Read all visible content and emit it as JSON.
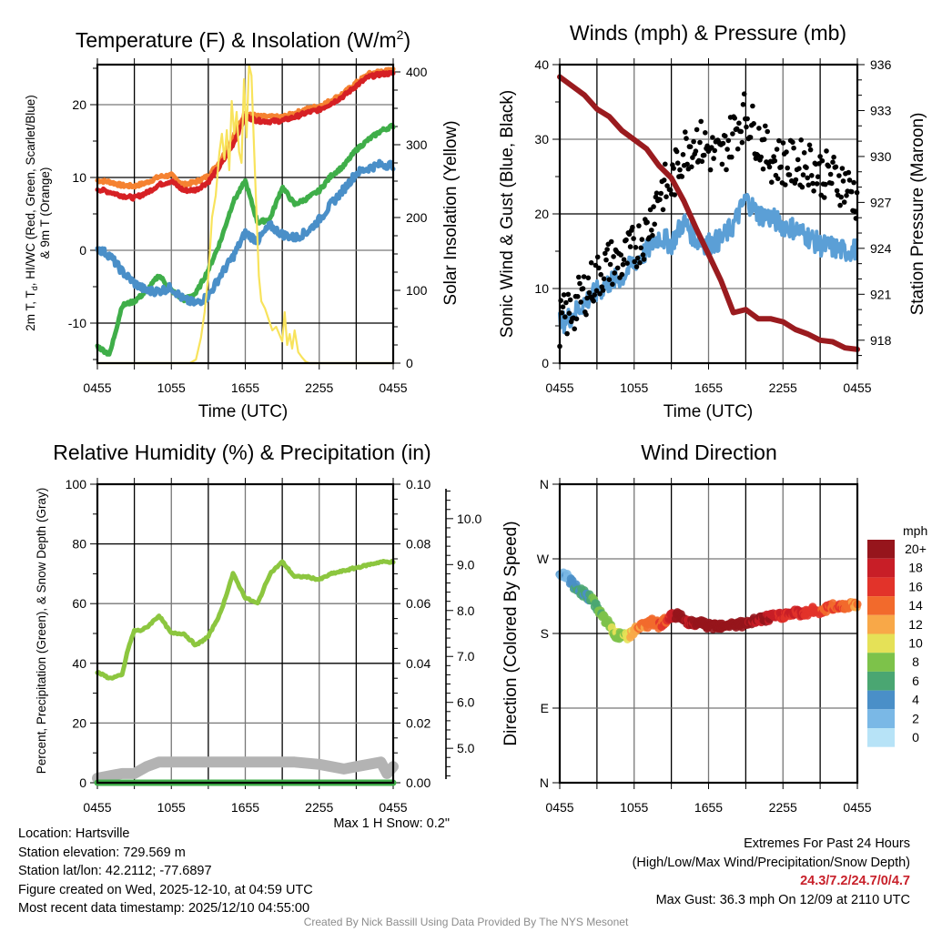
{
  "panels": {
    "temperature": {
      "title": "Temperature (F) & Insolation (W/m",
      "title_sup": "2",
      "title_close": ")",
      "ylabel_left_line1": "2m T, T",
      "ylabel_left_sub": "d",
      "ylabel_left_line1b": ", HI/WC (Red, Green, Scarlet/Blue)",
      "ylabel_left_line2": "& 9m T (Orange)",
      "ylabel_right": "Solar Insolation (Yellow)",
      "xlabel": "Time (UTC)"
    },
    "winds": {
      "title": "Winds (mph) & Pressure (mb)",
      "ylabel_left": "Sonic Wind & Gust (Blue, Black)",
      "ylabel_right": "Station Pressure (Maroon)",
      "xlabel": "Time (UTC)"
    },
    "humidity": {
      "title": "Relative Humidity (%) & Precipitation (in)",
      "ylabel_left": "Percent, Precipitation (Green), & Snow Depth (Gray)",
      "snow_max_label": "Max 1 H Snow: 0.2\""
    },
    "direction": {
      "title": "Wind Direction",
      "ylabel_left": "Direction (Colored By Speed)",
      "colorbar_title": "mph"
    }
  },
  "chart_data": [
    {
      "id": "temperature",
      "type": "line",
      "title": "Temperature (F) & Insolation (W/m^2)",
      "xlabel": "Time (UTC)",
      "ylabel": "2m T, Td, HI/WC (Red, Green, Scarlet/Blue) & 9m T (Orange)",
      "y2label": "Solar Insolation (Yellow)",
      "x_ticks": [
        "0455",
        "1055",
        "1655",
        "2255",
        "0455"
      ],
      "x_range_hours": [
        0,
        24
      ],
      "ylim": [
        -15.5,
        25.5
      ],
      "y_ticks": [
        -10,
        0,
        10,
        20
      ],
      "y2lim": [
        0,
        410
      ],
      "y2_ticks": [
        0,
        100,
        200,
        300,
        400
      ],
      "grid": true,
      "series": [
        {
          "name": "9m T",
          "axis": "left",
          "color": "#f58231",
          "x": [
            0,
            1,
            2,
            3,
            4,
            5,
            6,
            7,
            8,
            9,
            10,
            11,
            12,
            13,
            14,
            15,
            16,
            17,
            18,
            19,
            20,
            21,
            22,
            23,
            24
          ],
          "values": [
            9.6,
            9.4,
            8.9,
            8.8,
            9.3,
            10.1,
            10.3,
            9.0,
            9.4,
            10.2,
            12.3,
            15.5,
            18.9,
            18.4,
            18.3,
            18.3,
            18.8,
            19.4,
            19.8,
            20.6,
            21.6,
            23.0,
            24.2,
            24.6,
            24.7
          ]
        },
        {
          "name": "2m T",
          "axis": "left",
          "color": "#d62024",
          "x": [
            0,
            1,
            2,
            3,
            4,
            5,
            6,
            7,
            8,
            9,
            10,
            11,
            12,
            13,
            14,
            15,
            16,
            17,
            18,
            19,
            20,
            21,
            22,
            23,
            24
          ],
          "values": [
            8.4,
            8.0,
            7.5,
            7.2,
            7.9,
            9.0,
            9.5,
            8.2,
            8.3,
            9.4,
            11.7,
            14.6,
            18.4,
            17.8,
            17.7,
            17.8,
            18.3,
            18.9,
            19.3,
            20.2,
            21.2,
            22.6,
            23.8,
            24.2,
            24.3
          ]
        },
        {
          "name": "2m Td",
          "axis": "left",
          "color": "#3fae49",
          "x": [
            0,
            1,
            2,
            3,
            4,
            5,
            6,
            7,
            8,
            9,
            10,
            11,
            12,
            13,
            14,
            15,
            16,
            17,
            18,
            19,
            20,
            21,
            22,
            23,
            24
          ],
          "values": [
            -13.2,
            -14.3,
            -7.6,
            -7.0,
            -5.6,
            -3.4,
            -5.5,
            -6.8,
            -5.9,
            -2.7,
            1.3,
            6.6,
            9.5,
            3.8,
            4.3,
            8.7,
            6.3,
            7.1,
            8.2,
            10.3,
            11.6,
            13.8,
            15.2,
            16.4,
            17.1
          ]
        },
        {
          "name": "HI/WC",
          "axis": "left",
          "color": "#4a8fc8",
          "x": [
            0,
            1,
            2,
            3,
            4,
            5,
            6,
            7,
            8,
            9,
            10,
            11,
            12,
            13,
            14,
            15,
            16,
            17,
            18,
            19,
            20,
            21,
            22,
            23,
            24
          ],
          "values": [
            0.3,
            -0.7,
            -2.9,
            -4.5,
            -5.6,
            -5.6,
            -5.1,
            -6.8,
            -7.3,
            -6.3,
            -3.4,
            -0.9,
            2.4,
            1.3,
            3.4,
            2.2,
            1.7,
            2.5,
            4.2,
            6.4,
            8.4,
            10.6,
            11.3,
            11.8,
            11.7
          ]
        },
        {
          "name": "Solar Insolation",
          "axis": "right",
          "color": "#f8e35c",
          "x": [
            0,
            7.5,
            8.0,
            8.4,
            8.7,
            9.0,
            9.3,
            9.6,
            9.9,
            10.1,
            10.3,
            10.5,
            10.7,
            10.9,
            11.1,
            11.3,
            11.5,
            11.7,
            11.9,
            12.1,
            12.3,
            12.5,
            12.7,
            12.9,
            13.1,
            13.3,
            13.6,
            13.9,
            14.2,
            14.5,
            14.8,
            15.0,
            15.2,
            15.4,
            15.6,
            15.8,
            16.0,
            16.3,
            16.6,
            16.9,
            17.2,
            24
          ],
          "values": [
            0,
            0,
            5,
            35,
            70,
            120,
            200,
            230,
            290,
            315,
            280,
            320,
            265,
            360,
            315,
            345,
            290,
            275,
            390,
            310,
            410,
            395,
            300,
            210,
            120,
            85,
            75,
            60,
            45,
            50,
            38,
            30,
            70,
            25,
            40,
            20,
            45,
            15,
            8,
            2,
            0,
            0
          ]
        }
      ]
    },
    {
      "id": "winds",
      "type": "line",
      "title": "Winds (mph) & Pressure (mb)",
      "xlabel": "Time (UTC)",
      "ylabel": "Sonic Wind & Gust (Blue, Black)",
      "y2label": "Station Pressure (Maroon)",
      "x_ticks": [
        "0455",
        "1055",
        "1655",
        "2255",
        "0455"
      ],
      "x_range_hours": [
        0,
        24
      ],
      "ylim": [
        0,
        40
      ],
      "y_ticks": [
        0,
        10,
        20,
        30,
        40
      ],
      "y2lim": [
        916.5,
        936
      ],
      "y2_ticks": [
        918,
        921,
        924,
        927,
        930,
        933,
        936
      ],
      "grid": true,
      "series": [
        {
          "name": "Sonic Wind",
          "axis": "left",
          "color": "#5b9fd6",
          "x": [
            0,
            1,
            2,
            3,
            4,
            5,
            6,
            7,
            8,
            9,
            10,
            11,
            12,
            13,
            14,
            15,
            16,
            17,
            18,
            19,
            20,
            21,
            22,
            23,
            24
          ],
          "values": [
            5.2,
            6.4,
            8.2,
            9.5,
            10.8,
            11.5,
            13.5,
            15.0,
            17.0,
            16.0,
            19.0,
            16.5,
            16.0,
            16.5,
            18.5,
            22.0,
            20.0,
            19.5,
            18.5,
            18.0,
            17.0,
            15.8,
            15.5,
            15.0,
            15.2
          ]
        },
        {
          "name": "Gust",
          "axis": "left",
          "color": "#000000",
          "marker": "dot",
          "x": [
            0,
            1,
            2,
            3,
            4,
            5,
            6,
            7,
            8,
            9,
            10,
            11,
            12,
            13,
            14,
            15,
            16,
            17,
            18,
            19,
            20,
            21,
            22,
            23,
            24
          ],
          "values": [
            5.5,
            7.0,
            9.5,
            11.5,
            13.5,
            13.5,
            15.5,
            17.5,
            23.0,
            24.0,
            28.5,
            30.0,
            28.5,
            27.5,
            31.0,
            33.5,
            30.0,
            27.5,
            27.0,
            26.5,
            27.0,
            25.5,
            25.0,
            24.0,
            22.0
          ]
        },
        {
          "name": "Station Pressure",
          "axis": "right",
          "color": "#9a1b1f",
          "x": [
            0,
            1,
            2,
            3,
            4,
            5,
            6,
            7,
            8,
            9,
            10,
            11,
            12,
            13,
            14,
            15,
            16,
            17,
            18,
            19,
            20,
            21,
            22,
            23,
            24
          ],
          "values": [
            935.2,
            934.6,
            934.0,
            933.1,
            932.6,
            931.7,
            931.1,
            930.5,
            929.4,
            928.6,
            927.1,
            925.3,
            923.6,
            921.9,
            919.8,
            920.0,
            919.4,
            919.4,
            919.2,
            918.7,
            918.4,
            918.0,
            917.9,
            917.5,
            917.4
          ]
        }
      ]
    },
    {
      "id": "humidity",
      "type": "line",
      "title": "Relative Humidity (%) & Precipitation (in)",
      "ylabel": "Percent, Precipitation (Green), & Snow Depth (Gray)",
      "x_ticks": [
        "0455",
        "1055",
        "1655",
        "2255",
        "0455"
      ],
      "x_range_hours": [
        0,
        24
      ],
      "ylim": [
        0,
        100
      ],
      "y_ticks": [
        0,
        20,
        40,
        60,
        80,
        100
      ],
      "y2lim": [
        0,
        0.1
      ],
      "y2_ticks": [
        "0.00",
        "0.02",
        "0.04",
        "0.06",
        "0.08",
        "0.10"
      ],
      "y3lim": [
        4.25,
        10.75
      ],
      "y3_ticks": [
        "5.0",
        "6.0",
        "7.0",
        "8.0",
        "9.0",
        "10.0"
      ],
      "grid": true,
      "series": [
        {
          "name": "Relative Humidity",
          "axis": "left",
          "color": "#8cc63f",
          "x": [
            0,
            1,
            2,
            2.5,
            3,
            3.5,
            4,
            5,
            6,
            7,
            8,
            9,
            10,
            11,
            12,
            13,
            14,
            15,
            16,
            17,
            18,
            19,
            20,
            21,
            22,
            23,
            24
          ],
          "values": [
            37,
            35,
            36,
            45,
            51,
            51,
            52,
            56,
            50,
            50,
            46,
            49,
            57,
            70,
            62,
            60,
            70,
            74,
            69,
            69,
            68,
            70,
            71,
            72,
            73,
            74,
            74
          ]
        },
        {
          "name": "Precipitation",
          "axis": "y2",
          "color": "#3fae49",
          "x": [
            0,
            24
          ],
          "values": [
            0,
            0
          ]
        },
        {
          "name": "Snow Depth",
          "axis": "y3",
          "color": "#b3b3b3",
          "x": [
            0,
            1,
            2,
            3,
            4,
            5,
            6,
            8,
            10,
            12,
            14,
            16,
            18,
            19,
            20,
            21,
            22,
            23,
            23.5,
            24
          ],
          "values": [
            4.35,
            4.4,
            4.45,
            4.45,
            4.6,
            4.7,
            4.7,
            4.7,
            4.7,
            4.7,
            4.7,
            4.7,
            4.65,
            4.6,
            4.55,
            4.6,
            4.65,
            4.7,
            4.45,
            4.6
          ]
        }
      ]
    },
    {
      "id": "direction",
      "type": "scatter",
      "title": "Wind Direction",
      "ylabel": "Direction (Colored By Speed)",
      "x_ticks": [
        "0455",
        "1055",
        "1655",
        "2255",
        "0455"
      ],
      "x_range_hours": [
        0,
        24
      ],
      "ylim": [
        0,
        360
      ],
      "y_tick_labels": [
        "N",
        "E",
        "S",
        "W",
        "N"
      ],
      "y_tick_values": [
        0,
        90,
        180,
        270,
        360
      ],
      "grid": true,
      "colorbar": {
        "title": "mph",
        "labels": [
          "0",
          "2",
          "4",
          "6",
          "8",
          "10",
          "12",
          "14",
          "16",
          "18",
          "20+"
        ],
        "colors": [
          "#b7e3f7",
          "#7ab8e6",
          "#4a8fc8",
          "#4aa672",
          "#7dc24a",
          "#e5e157",
          "#f8a848",
          "#f26a2c",
          "#e2332a",
          "#c81e27",
          "#96151c"
        ]
      },
      "points_x": [
        0,
        0.5,
        1,
        1.5,
        2,
        2.5,
        3,
        3.5,
        4,
        4.5,
        5,
        5.5,
        6,
        6.5,
        7,
        7.5,
        8,
        8.5,
        9,
        9.5,
        10,
        10.5,
        11,
        11.5,
        12,
        12.5,
        13,
        13.5,
        14,
        14.5,
        15,
        15.5,
        16,
        16.5,
        17,
        17.5,
        18,
        18.5,
        19,
        19.5,
        20,
        20.5,
        21,
        21.5,
        22,
        22.5,
        23,
        23.5,
        24
      ],
      "points_dir": [
        248,
        250,
        240,
        232,
        228,
        222,
        212,
        200,
        190,
        178,
        177,
        176,
        184,
        188,
        190,
        194,
        190,
        196,
        200,
        203,
        196,
        194,
        190,
        193,
        188,
        190,
        190,
        191,
        190,
        192,
        190,
        194,
        196,
        198,
        199,
        201,
        202,
        203,
        205,
        204,
        206,
        208,
        207,
        210,
        212,
        212,
        214,
        215,
        216
      ],
      "points_speed": [
        3.5,
        4,
        5,
        6,
        6,
        7,
        8,
        8.5,
        9.5,
        10,
        9,
        11,
        13,
        14,
        15,
        15,
        15.5,
        16,
        18,
        21,
        21,
        20,
        21,
        22,
        22,
        22,
        21,
        21,
        22,
        21,
        21,
        20,
        20,
        20,
        19,
        19,
        18,
        18,
        18,
        18,
        17,
        17,
        17,
        16,
        16,
        16,
        15,
        15,
        14
      ]
    }
  ],
  "info": {
    "location": "Location: Hartsville",
    "elevation": "Station elevation: 729.569 m",
    "latlon": "Station lat/lon: 42.2112; -77.6897",
    "created": "Figure created on Wed, 2025-12-10, at 04:59 UTC",
    "recent": "Most recent data timestamp: 2025/12/10 04:55:00"
  },
  "extremes": {
    "heading": "Extremes For Past 24 Hours",
    "legend": "(High/Low/Max Wind/Precipitation/Snow Depth)",
    "values": "24.3/7.2/24.7/0/4.7",
    "max_gust": "Max Gust: 36.3 mph On 12/09 at 2110 UTC"
  },
  "credit": "Created By Nick Bassill Using Data Provided By The NYS Mesonet"
}
